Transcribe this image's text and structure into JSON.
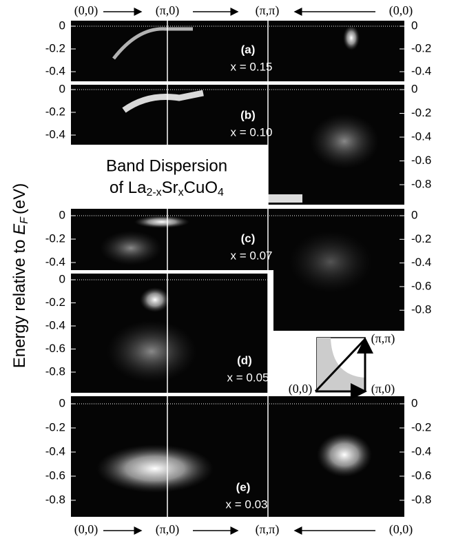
{
  "k_path": [
    "(0,0)",
    "(π,0)",
    "(π,π)",
    "(0,0)"
  ],
  "axis_label": {
    "text": "Energy relative to",
    "symbol": "E",
    "subscript": "F",
    "unit": "(eV)"
  },
  "title_box": {
    "line1": "Band Dispersion",
    "line2": {
      "of": "of  La",
      "sub1": "2-x",
      "sr": "Sr",
      "sub2": "x",
      "cuo": "CuO",
      "sub3": "4"
    }
  },
  "panels": [
    {
      "label": "(a)",
      "doping": "x = 0.15",
      "left_ticks": [
        "0",
        "-0.2",
        "-0.4"
      ],
      "right_ticks": [
        "0",
        "-0.2",
        "-0.4"
      ]
    },
    {
      "label": "(b)",
      "doping": "x = 0.10",
      "left_ticks": [
        "0",
        "-0.2",
        "-0.4"
      ],
      "right_ticks": [
        "0",
        "-0.2",
        "-0.4",
        "-0.6",
        "-0.8"
      ]
    },
    {
      "label": "(c)",
      "doping": "x = 0.07",
      "left_ticks": [
        "0",
        "-0.2",
        "-0.4"
      ],
      "right_ticks": [
        "0",
        "-0.2",
        "-0.4",
        "-0.6",
        "-0.8"
      ]
    },
    {
      "label": "(d)",
      "doping": "x = 0.05",
      "left_ticks": [
        "0",
        "-0.2",
        "-0.4",
        "-0.6",
        "-0.8"
      ],
      "right_ticks": []
    },
    {
      "label": "(e)",
      "doping": "x = 0.03",
      "left_ticks": [
        "0",
        "-0.2",
        "-0.4",
        "-0.6",
        "-0.8"
      ],
      "right_ticks": [
        "0",
        "-0.2",
        "-0.4",
        "-0.6",
        "-0.8"
      ]
    }
  ],
  "inset": {
    "labels": [
      "(0,0)",
      "(π,0)",
      "(π,π)"
    ]
  }
}
